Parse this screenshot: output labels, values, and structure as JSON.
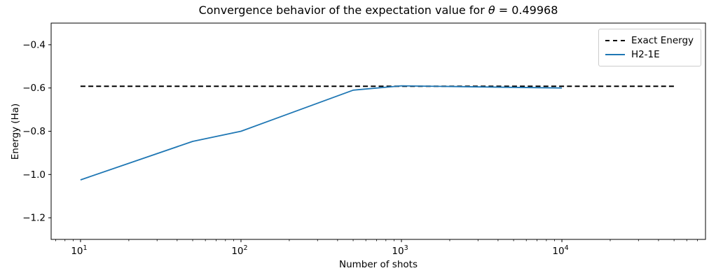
{
  "figure": {
    "title_prefix": "Convergence behavior of the expectation value for ",
    "title_symbol": "θ",
    "title_suffix": " = 0.49968"
  },
  "chart_data": {
    "type": "line",
    "title": "Convergence behavior of the expectation value for θ = 0.49968",
    "xlabel": "Number of shots",
    "ylabel": "Energy (Ha)",
    "x_scale": "log",
    "y_scale": "linear",
    "xlim": [
      6.56,
      78500
    ],
    "ylim": [
      -1.3,
      -0.3
    ],
    "grid": false,
    "legend_position": "upper right",
    "xticks": [
      {
        "value": 10,
        "base": "10",
        "exp": "1"
      },
      {
        "value": 100,
        "base": "10",
        "exp": "2"
      },
      {
        "value": 1000,
        "base": "10",
        "exp": "3"
      },
      {
        "value": 10000,
        "base": "10",
        "exp": "4"
      }
    ],
    "yticks": [
      {
        "value": -0.4,
        "label": "−0.4"
      },
      {
        "value": -0.6,
        "label": "−0.6"
      },
      {
        "value": -0.8,
        "label": "−0.8"
      },
      {
        "value": -1.0,
        "label": "−1.0"
      },
      {
        "value": -1.2,
        "label": "−1.2"
      }
    ],
    "series": [
      {
        "name": "Exact Energy",
        "color": "#000000",
        "style": "dashed",
        "x": [
          10,
          50000
        ],
        "y": [
          -0.592,
          -0.592
        ]
      },
      {
        "name": "H2-1E",
        "color": "#1f77b4",
        "style": "solid",
        "x": [
          10,
          50,
          100,
          500,
          1000,
          5000,
          10000
        ],
        "y": [
          -1.025,
          -0.847,
          -0.8,
          -0.61,
          -0.59,
          -0.597,
          -0.6
        ]
      }
    ]
  },
  "colors": {
    "axes": "#000000",
    "legend_border": "#cccccc",
    "exact_line": "#000000",
    "h2_line": "#1f77b4"
  }
}
